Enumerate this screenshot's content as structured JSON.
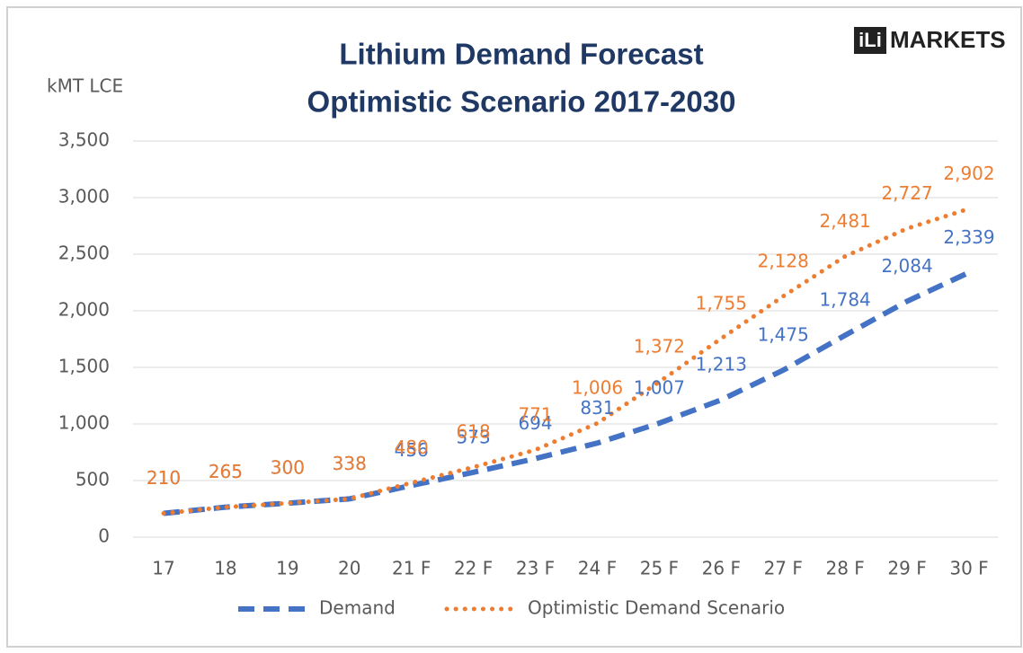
{
  "chart_data": {
    "type": "line",
    "title": "Lithium Demand Forecast",
    "subtitle": "Optimistic Scenario 2017-2030",
    "y_label": "kMT LCE",
    "logo": {
      "mark": "iLi",
      "text": "MARKETS"
    },
    "categories": [
      "17",
      "18",
      "19",
      "20",
      "21 F",
      "22 F",
      "23 F",
      "24 F",
      "25 F",
      "26 F",
      "27 F",
      "28 F",
      "29 F",
      "30 F"
    ],
    "series": [
      {
        "name": "Demand",
        "color": "#4472c4",
        "style": "dashed",
        "values": [
          210,
          265,
          300,
          338,
          456,
          573,
          694,
          831,
          1007,
          1213,
          1475,
          1784,
          2084,
          2339
        ],
        "value_labels": [
          "210",
          "265",
          "300",
          "338",
          "456",
          "573",
          "694",
          "831",
          "1,007",
          "1,213",
          "1,475",
          "1,784",
          "2,084",
          "2,339"
        ]
      },
      {
        "name": "Optimistic Demand Scenario",
        "color": "#ed7d31",
        "style": "dotted",
        "values": [
          210,
          265,
          300,
          338,
          480,
          618,
          771,
          1006,
          1372,
          1755,
          2128,
          2481,
          2727,
          2902
        ],
        "value_labels": [
          "210",
          "265",
          "300",
          "338",
          "480",
          "618",
          "771",
          "1,006",
          "1,372",
          "1,755",
          "2,128",
          "2,481",
          "2,727",
          "2,902"
        ]
      }
    ],
    "ylim": [
      0,
      3500
    ],
    "yticks": [
      0,
      500,
      {
        "value": 1000,
        "label": "1,000"
      },
      {
        "value": 1500,
        "label": "1,500"
      },
      {
        "value": 2000,
        "label": "2,000"
      },
      {
        "value": 2500,
        "label": "2,500"
      },
      {
        "value": 3000,
        "label": "3,000"
      },
      {
        "value": 3500,
        "label": "3,500"
      }
    ],
    "grid": true,
    "legend": "bottom"
  }
}
